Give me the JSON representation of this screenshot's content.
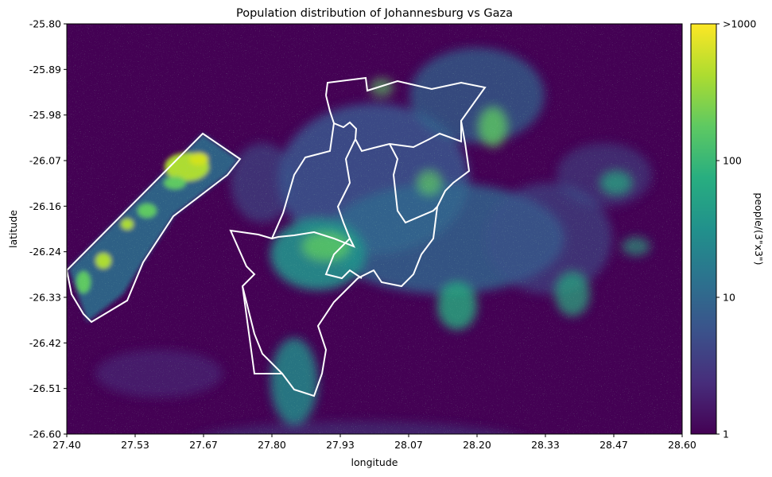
{
  "chart_data": {
    "type": "heatmap",
    "title": "Population distribution of Johannesburg vs Gaza",
    "xlabel": "longitude",
    "ylabel": "latitude",
    "xlim": [
      27.4,
      28.6
    ],
    "ylim": [
      -26.6,
      -25.8
    ],
    "x_ticks": [
      "27.40",
      "27.53",
      "27.67",
      "27.80",
      "27.93",
      "28.07",
      "28.20",
      "28.33",
      "28.47",
      "28.60"
    ],
    "y_ticks": [
      "-25.80",
      "-25.89",
      "-25.98",
      "-26.07",
      "-26.16",
      "-26.24",
      "-26.33",
      "-26.42",
      "-26.51",
      "-26.60"
    ],
    "colormap": "viridis",
    "colorbar": {
      "label": "people/(3\"x3\")",
      "scale": "log",
      "ticks": [
        "1",
        "10",
        "100",
        ">1000"
      ]
    },
    "outline_color": "#ffffff",
    "background_color": "#440154"
  }
}
